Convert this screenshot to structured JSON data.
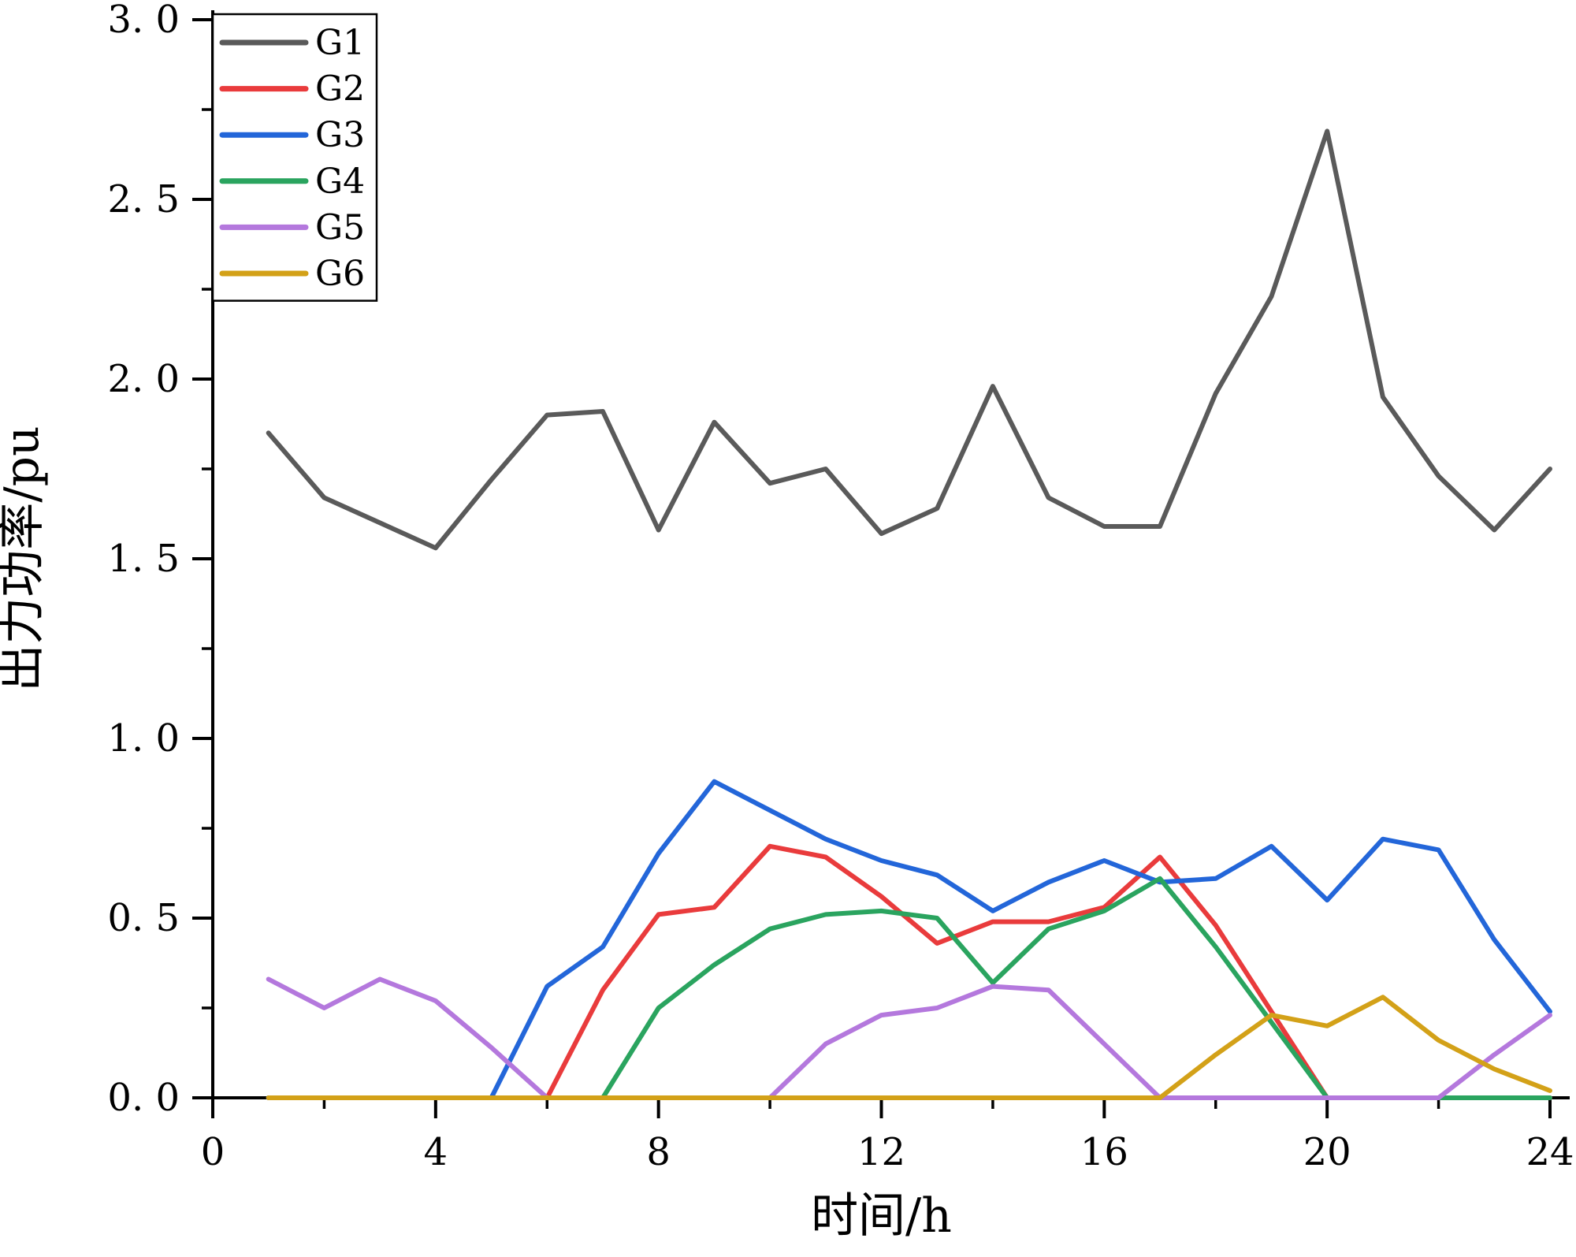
{
  "chart_data": {
    "type": "line",
    "xlabel": "时间/h",
    "ylabel": "出力功率/pu",
    "xlim": [
      0,
      24
    ],
    "ylim": [
      0,
      3.0
    ],
    "grid": false,
    "legend_position": "top-left",
    "x_major_ticks": [
      0,
      4,
      8,
      12,
      16,
      20,
      24
    ],
    "x_minor_ticks": [
      2,
      6,
      10,
      14,
      18,
      22
    ],
    "x_tick_labels": [
      "0",
      "4",
      "8",
      "12",
      "16",
      "20",
      "24"
    ],
    "y_major_ticks": [
      0,
      0.5,
      1.0,
      1.5,
      2.0,
      2.5,
      3.0
    ],
    "y_minor_ticks": [
      0.25,
      0.75,
      1.25,
      1.75,
      2.25,
      2.75
    ],
    "y_tick_labels": [
      "0. 0",
      "0. 5",
      "1. 0",
      "1. 5",
      "2. 0",
      "2. 5",
      "3. 0"
    ],
    "x": [
      1,
      2,
      3,
      4,
      5,
      6,
      7,
      8,
      9,
      10,
      11,
      12,
      13,
      14,
      15,
      16,
      17,
      18,
      19,
      20,
      21,
      22,
      23,
      24
    ],
    "series": [
      {
        "name": "G1",
        "color": "#5a5a5a",
        "values": [
          1.85,
          1.67,
          1.6,
          1.53,
          1.72,
          1.9,
          1.91,
          1.58,
          1.88,
          1.71,
          1.75,
          1.57,
          1.64,
          1.98,
          1.67,
          1.59,
          1.59,
          1.96,
          2.23,
          2.69,
          1.95,
          1.73,
          1.58,
          1.75
        ]
      },
      {
        "name": "G2",
        "color": "#e93b3c",
        "values": [
          0,
          0,
          0,
          0,
          0,
          0,
          0.3,
          0.51,
          0.53,
          0.7,
          0.67,
          0.56,
          0.43,
          0.49,
          0.49,
          0.53,
          0.67,
          0.48,
          0.24,
          0,
          0,
          0,
          0,
          0
        ]
      },
      {
        "name": "G3",
        "color": "#2366d9",
        "values": [
          0,
          0,
          0,
          0,
          0,
          0.31,
          0.42,
          0.68,
          0.88,
          0.8,
          0.72,
          0.66,
          0.62,
          0.52,
          0.6,
          0.66,
          0.6,
          0.61,
          0.7,
          0.55,
          0.72,
          0.69,
          0.44,
          0.24
        ]
      },
      {
        "name": "G4",
        "color": "#2aa45f",
        "values": [
          0,
          0,
          0,
          0,
          0,
          0,
          0,
          0.25,
          0.37,
          0.47,
          0.51,
          0.52,
          0.5,
          0.32,
          0.47,
          0.52,
          0.61,
          0.42,
          0.21,
          0,
          0,
          0,
          0,
          0
        ]
      },
      {
        "name": "G5",
        "color": "#b478dd",
        "values": [
          0.33,
          0.25,
          0.33,
          0.27,
          0.14,
          0,
          0,
          0,
          0,
          0,
          0.15,
          0.23,
          0.25,
          0.31,
          0.3,
          0.15,
          0,
          0,
          0,
          0,
          0,
          0,
          0.12,
          0.23
        ]
      },
      {
        "name": "G6",
        "color": "#d3a118",
        "values": [
          0,
          0,
          0,
          0,
          0,
          0,
          0,
          0,
          0,
          0,
          0,
          0,
          0,
          0,
          0,
          0,
          0,
          0.12,
          0.23,
          0.2,
          0.28,
          0.16,
          0.08,
          0.02
        ]
      }
    ]
  }
}
